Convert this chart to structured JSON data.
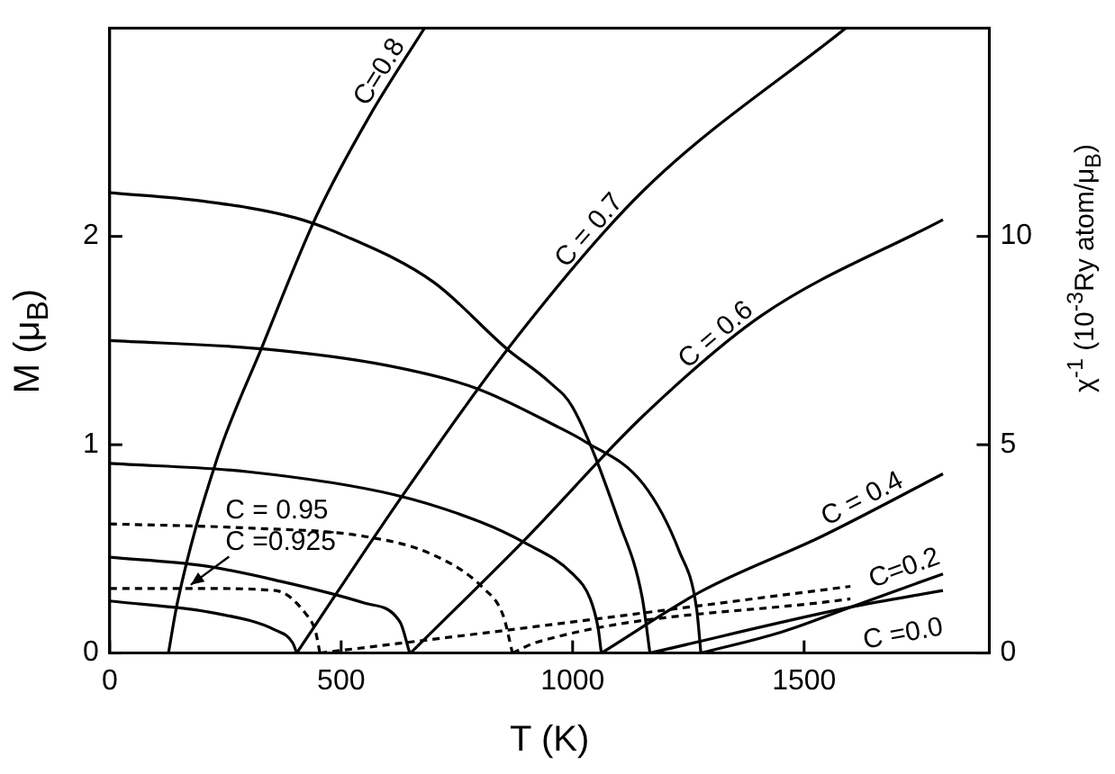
{
  "chart_data": {
    "type": "line",
    "xlabel": "T (K)",
    "ylabel": "M (μ$_{B}$)",
    "y2label": "χ$^{-1}$ (10$^{-3}$Ry atom/μ$_{B}$)",
    "xlim": [
      0,
      1900
    ],
    "xticks": [
      0,
      500,
      1000,
      1500
    ],
    "ylim": [
      0,
      3
    ],
    "yticks": [
      0,
      1,
      2
    ],
    "y2lim": [
      0,
      15
    ],
    "y2ticks": [
      0,
      5,
      10
    ],
    "grid": false,
    "legend": false,
    "marker": "none",
    "series": [
      {
        "color": "#000000",
        "x": [
          0,
          200,
          400,
          500,
          700,
          858,
          950,
          1000,
          1100,
          1150,
          1167
        ],
        "values": [
          2.21,
          2.17,
          2.09,
          2.01,
          1.78,
          1.46,
          1.3,
          1.18,
          0.63,
          0.27,
          0
        ]
      },
      {
        "color": "#000000",
        "x": [
          0,
          331,
          600,
          793,
          973,
          1023,
          1153,
          1230,
          1268,
          1277
        ],
        "values": [
          1.5,
          1.46,
          1.38,
          1.27,
          1.08,
          1.02,
          0.81,
          0.49,
          0.21,
          0
        ]
      },
      {
        "color": "#000000",
        "x": [
          0,
          300,
          615,
          800,
          896,
          1000,
          1038,
          1055,
          1062
        ],
        "values": [
          0.91,
          0.87,
          0.76,
          0.63,
          0.53,
          0.38,
          0.26,
          0.12,
          0
        ]
      },
      {
        "color": "#000000",
        "x": [
          0,
          200,
          358,
          550,
          627,
          648
        ],
        "values": [
          0.46,
          0.42,
          0.35,
          0.24,
          0.15,
          0
        ]
      },
      {
        "color": "#000000",
        "x": [
          0,
          231,
          358,
          395,
          404
        ],
        "values": [
          0.25,
          0.19,
          0.11,
          0.05,
          0
        ]
      },
      {
        "name": "C = 0.95",
        "color": "#000000",
        "line_style": "dashed",
        "x": [
          0,
          300,
          550,
          700,
          808,
          850,
          870
        ],
        "values": [
          0.62,
          0.6,
          0.56,
          0.47,
          0.31,
          0.18,
          0
        ]
      },
      {
        "name": "C =0.925",
        "color": "#000000",
        "line_style": "dashed",
        "x": [
          0,
          200,
          358,
          423,
          445,
          454
        ],
        "values": [
          0.31,
          0.31,
          0.3,
          0.19,
          0.1,
          0
        ]
      },
      {
        "name": "C=0.8",
        "color": "#000000",
        "axis": "y2",
        "x": [
          127,
          146,
          230,
          331,
          447,
          562,
          680
        ],
        "values": [
          0,
          1.2,
          4.6,
          7.4,
          10.5,
          12.9,
          15
        ]
      },
      {
        "name": "C = 0.7",
        "color": "#000000",
        "axis": "y2",
        "x": [
          404,
          640,
          895,
          1153,
          1590
        ],
        "values": [
          0,
          3.9,
          7.8,
          11.1,
          15
        ]
      },
      {
        "name": "C = 0.6",
        "color": "#000000",
        "axis": "y2",
        "x": [
          650,
          895,
          1153,
          1408,
          1800
        ],
        "values": [
          0,
          2.7,
          5.7,
          8.1,
          10.4
        ]
      },
      {
        "name": "C = 0.4",
        "color": "#000000",
        "axis": "y2",
        "x": [
          1062,
          1281,
          1538,
          1800
        ],
        "values": [
          0,
          1.5,
          2.8,
          4.3
        ]
      },
      {
        "name": "C=0.2",
        "color": "#000000",
        "axis": "y2",
        "x": [
          1277,
          1450,
          1600,
          1800
        ],
        "values": [
          0,
          0.5,
          1.1,
          1.9
        ]
      },
      {
        "name": "C =0.0",
        "color": "#000000",
        "axis": "y2",
        "x": [
          1167,
          1600,
          1800
        ],
        "values": [
          0,
          1.1,
          1.5
        ]
      },
      {
        "color": "#000000",
        "axis": "y2",
        "line_style": "dashed",
        "x": [
          454,
          895,
          1600
        ],
        "values": [
          0,
          0.6,
          1.6
        ]
      },
      {
        "color": "#000000",
        "axis": "y2",
        "line_style": "dashed",
        "x": [
          870,
          920,
          1600
        ],
        "values": [
          0,
          0.25,
          1.3
        ]
      }
    ]
  }
}
